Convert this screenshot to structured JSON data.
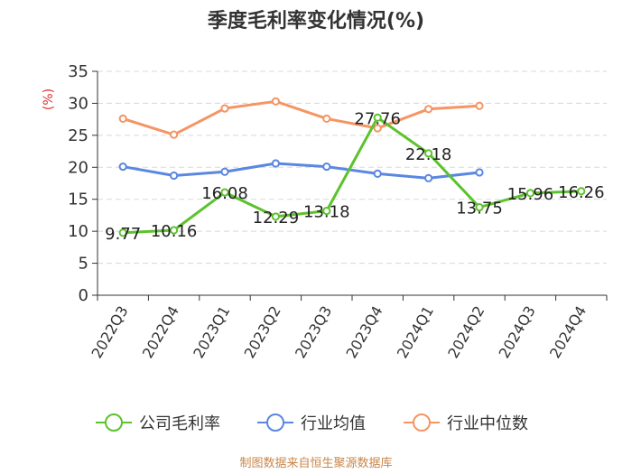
{
  "chart_data": {
    "type": "line",
    "title": "季度毛利率变化情况(%)",
    "ylabel": "(%)",
    "xlabel": "",
    "categories": [
      "2022Q3",
      "2022Q4",
      "2023Q1",
      "2023Q2",
      "2023Q3",
      "2023Q4",
      "2024Q1",
      "2024Q2",
      "2024Q3",
      "2024Q4"
    ],
    "ylim": [
      0,
      35
    ],
    "yticks": [
      "0",
      "5",
      "10",
      "15",
      "20",
      "25",
      "30",
      "35"
    ],
    "grid": true,
    "legend_position": "bottom",
    "series": [
      {
        "name": "公司毛利率",
        "color": "#5cc22d",
        "values": [
          9.77,
          10.16,
          16.08,
          12.29,
          13.18,
          27.76,
          22.18,
          13.75,
          15.96,
          16.26
        ],
        "labels": [
          "9.77",
          "10.16",
          "16.08",
          "12.29",
          "13.18",
          "27.76",
          "22.18",
          "13.75",
          "15.96",
          "16.26"
        ]
      },
      {
        "name": "行业均值",
        "color": "#5a87e0",
        "values": [
          20.1,
          18.7,
          19.3,
          20.6,
          20.1,
          19.0,
          18.3,
          19.2,
          null,
          null
        ]
      },
      {
        "name": "行业中位数",
        "color": "#f59563",
        "values": [
          27.6,
          25.1,
          29.2,
          30.3,
          27.6,
          26.1,
          29.1,
          29.6,
          null,
          null
        ]
      }
    ]
  },
  "source": "制图数据来自恒生聚源数据库"
}
